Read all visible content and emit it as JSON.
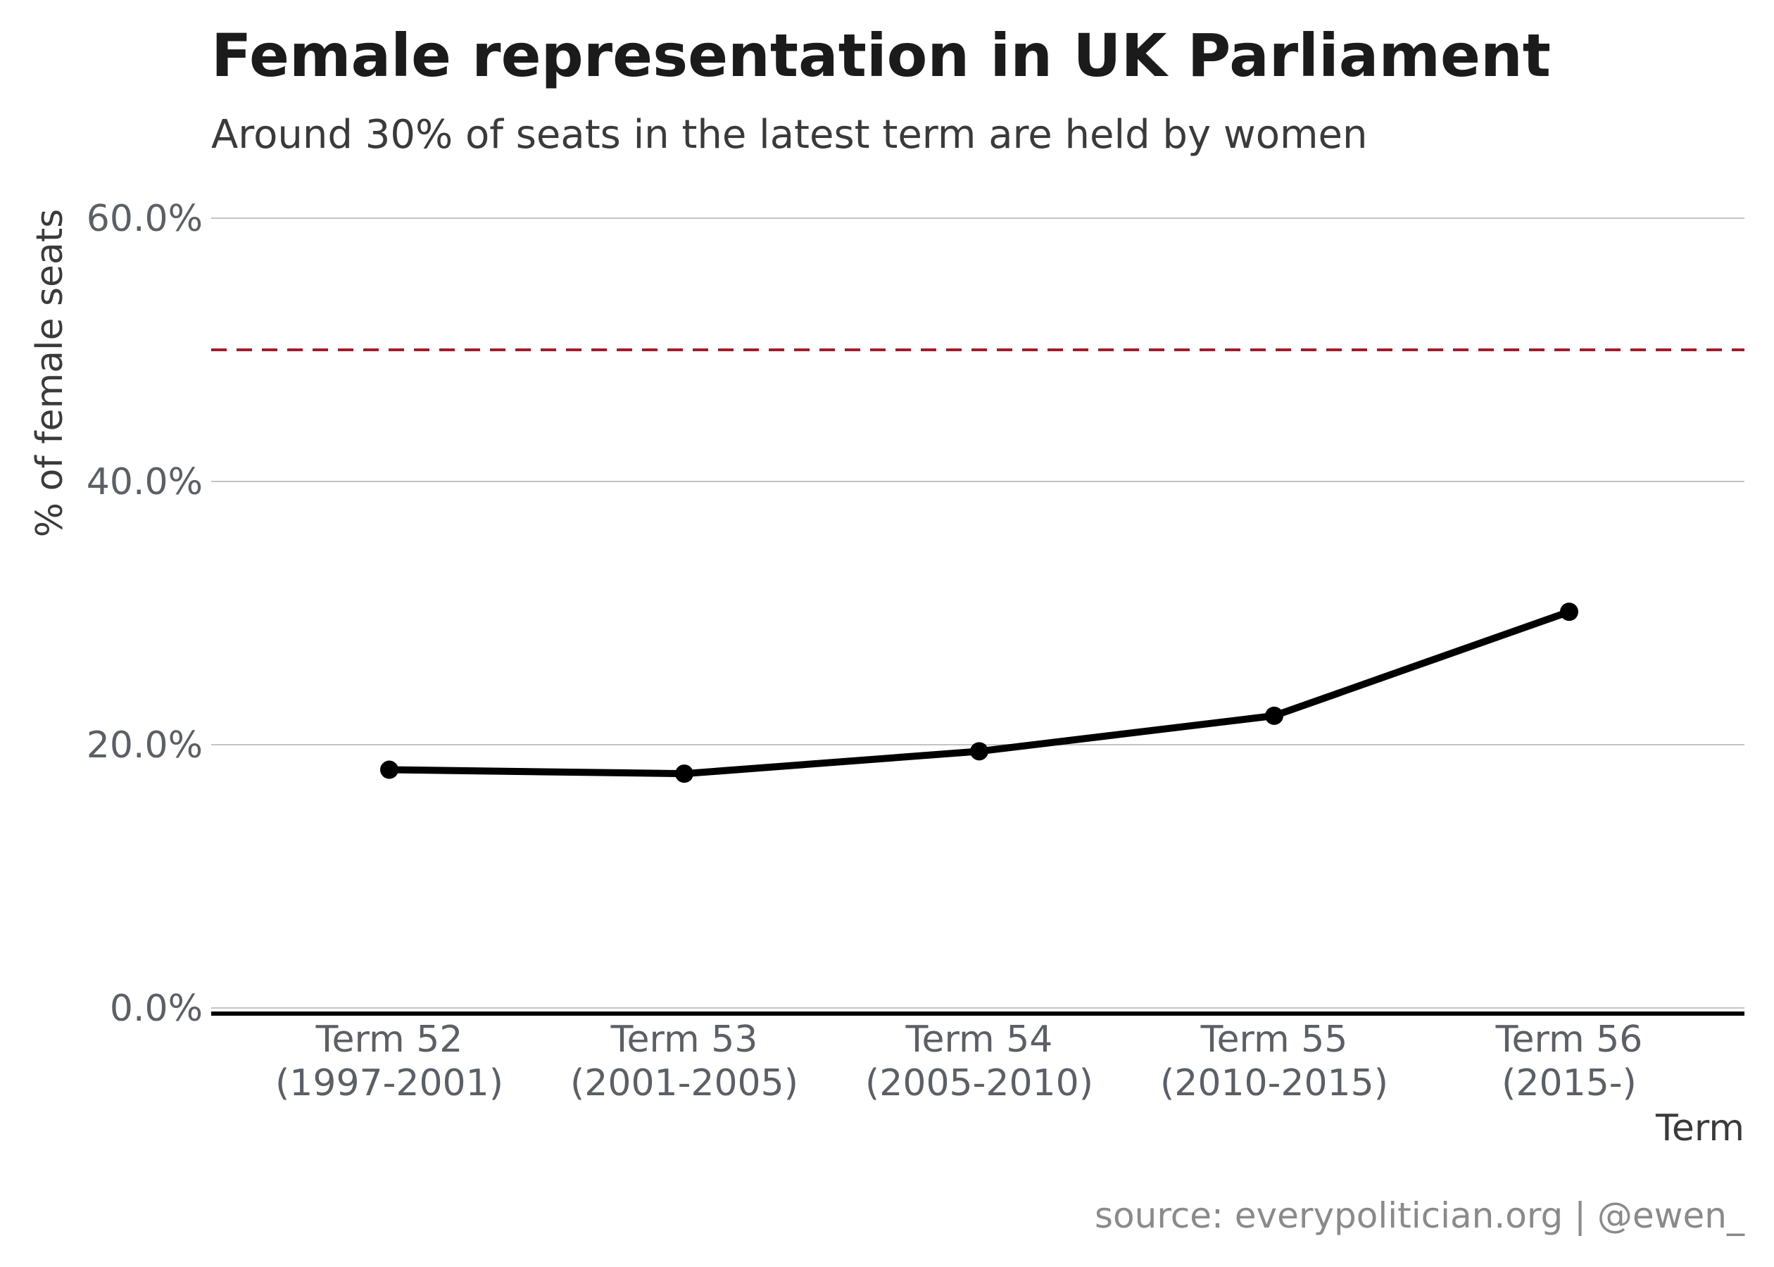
{
  "chart_data": {
    "type": "line",
    "title": "Female representation in UK Parliament",
    "subtitle": "Around 30% of seats in the latest term are held by women",
    "xlabel": "Term",
    "ylabel": "% of female seats",
    "categories": [
      [
        "Term 52",
        "(1997-2001)"
      ],
      [
        "Term 53",
        "(2001-2005)"
      ],
      [
        "Term 54",
        "(2005-2010)"
      ],
      [
        "Term 55",
        "(2010-2015)"
      ],
      [
        "Term 56",
        "(2015-)"
      ]
    ],
    "series": [
      {
        "values": [
          18.1,
          17.8,
          19.5,
          22.2,
          30.1
        ],
        "color": "#000000"
      }
    ],
    "ylim": [
      0,
      60
    ],
    "yticks": [
      0,
      20,
      40,
      60
    ],
    "ytick_labels": [
      "0.0%",
      "20.0%",
      "40.0%",
      "60.0%"
    ],
    "reference_line": {
      "value": 50,
      "style": "dashed",
      "color": "#a31b2b"
    },
    "grid": true,
    "caption": "source: everypolitician.org | @ewen_",
    "colors": {
      "line": "#000000",
      "reference": "#a31b2b",
      "grid": "#c4c4c4",
      "baseline": "#000000"
    }
  }
}
